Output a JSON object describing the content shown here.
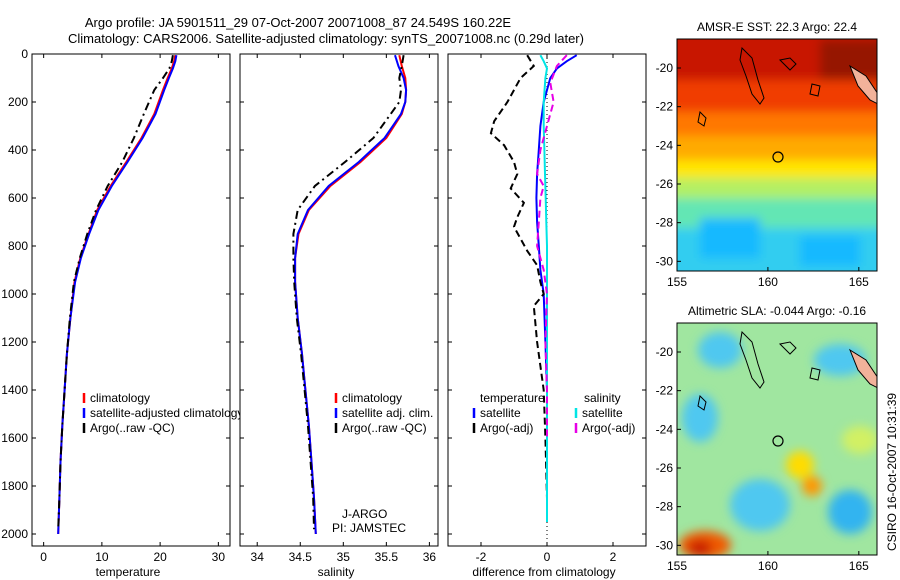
{
  "figure": {
    "title_line1": "Argo profile: JA 5901511_29 07-Oct-2007 20071008_87 24.549S 160.22E",
    "title_line2": "Climatology: CARS2006. Satellite-adjusted climatology: synTS_20071008.nc (0.29d later)",
    "credit": "CSIRO 16-Oct-2007 10:31:39",
    "pi_line1": "J-ARGO",
    "pi_line2": "PI: JAMSTEC"
  },
  "colors": {
    "climatology": "#ff0000",
    "satellite": "#0000ff",
    "argo": "#000000",
    "satellite_salinity": "#00e5e5",
    "argo_salinity": "#e600e6",
    "land": "#f2b29a"
  },
  "chart_data": [
    {
      "type": "line",
      "xlabel": "temperature",
      "ylabel": "",
      "xlim": [
        -2,
        32
      ],
      "ylim": [
        2050,
        0
      ],
      "xticks": [
        0,
        10,
        20,
        30
      ],
      "yticks": [
        0,
        200,
        400,
        600,
        800,
        1000,
        1200,
        1400,
        1600,
        1800,
        2000
      ],
      "legend": [
        "climatology",
        "satellite-adjusted climatology",
        "Argo(..raw -QC)"
      ],
      "series": [
        {
          "name": "climatology",
          "x": [
            22.6,
            22.4,
            22.0,
            21.3,
            20.5,
            19.0,
            16.8,
            14.2,
            11.5,
            9.2,
            7.7,
            6.3,
            5.3,
            4.6,
            4.0,
            3.6,
            3.2,
            2.9,
            2.7,
            2.5
          ],
          "y": [
            5,
            30,
            60,
            100,
            150,
            250,
            350,
            450,
            550,
            650,
            750,
            850,
            950,
            1100,
            1250,
            1400,
            1550,
            1700,
            1850,
            2000
          ]
        },
        {
          "name": "satellite-adjusted climatology",
          "x": [
            22.8,
            22.6,
            22.2,
            21.5,
            20.7,
            19.2,
            17.0,
            14.4,
            11.7,
            9.4,
            7.8,
            6.4,
            5.4,
            4.6,
            4.0,
            3.6,
            3.2,
            2.9,
            2.7,
            2.5
          ],
          "y": [
            5,
            30,
            60,
            100,
            150,
            250,
            350,
            450,
            550,
            650,
            750,
            850,
            950,
            1100,
            1250,
            1400,
            1550,
            1700,
            1850,
            2000
          ]
        },
        {
          "name": "Argo(..raw -QC)",
          "x": [
            22.2,
            22.0,
            21.6,
            20.5,
            19.0,
            17.2,
            15.5,
            13.5,
            11.0,
            9.0,
            7.5,
            6.2,
            5.2,
            4.5,
            4.0,
            3.6,
            3.2,
            2.9,
            2.7,
            2.5
          ],
          "y": [
            5,
            30,
            60,
            100,
            150,
            250,
            350,
            450,
            550,
            650,
            750,
            850,
            950,
            1100,
            1250,
            1400,
            1550,
            1700,
            1850,
            1980
          ]
        }
      ]
    },
    {
      "type": "line",
      "xlabel": "salinity",
      "ylabel": "",
      "xlim": [
        33.8,
        36.1
      ],
      "ylim": [
        2050,
        0
      ],
      "xticks": [
        34,
        34.5,
        35,
        35.5,
        36
      ],
      "legend": [
        "climatology",
        "satellite adj. clim.",
        "Argo(..raw -QC)"
      ],
      "series": [
        {
          "name": "climatology",
          "x": [
            35.65,
            35.68,
            35.72,
            35.73,
            35.72,
            35.68,
            35.5,
            35.2,
            34.85,
            34.6,
            34.48,
            34.44,
            34.44,
            34.47,
            34.52,
            34.56,
            34.6,
            34.63,
            34.66,
            34.68
          ],
          "y": [
            5,
            50,
            100,
            150,
            200,
            250,
            350,
            450,
            550,
            650,
            750,
            850,
            950,
            1100,
            1250,
            1400,
            1550,
            1700,
            1850,
            2000
          ]
        },
        {
          "name": "satellite adj. clim.",
          "x": [
            35.6,
            35.64,
            35.7,
            35.73,
            35.72,
            35.67,
            35.48,
            35.18,
            34.83,
            34.59,
            34.47,
            34.44,
            34.44,
            34.47,
            34.52,
            34.56,
            34.6,
            34.63,
            34.66,
            34.68
          ],
          "y": [
            5,
            50,
            100,
            150,
            200,
            250,
            350,
            450,
            550,
            650,
            750,
            850,
            950,
            1100,
            1250,
            1400,
            1550,
            1700,
            1850,
            2000
          ]
        },
        {
          "name": "Argo(..raw -QC)",
          "x": [
            35.7,
            35.68,
            35.65,
            35.67,
            35.65,
            35.55,
            35.35,
            35.02,
            34.67,
            34.47,
            34.42,
            34.42,
            34.43,
            34.46,
            34.51,
            34.55,
            34.59,
            34.62,
            34.65,
            34.66
          ],
          "y": [
            5,
            50,
            100,
            150,
            200,
            250,
            350,
            450,
            550,
            650,
            750,
            850,
            950,
            1100,
            1250,
            1400,
            1550,
            1700,
            1850,
            1980
          ]
        }
      ]
    },
    {
      "type": "line",
      "xlabel": "difference from climatology",
      "ylabel": "",
      "xlim": [
        -3,
        3
      ],
      "ylim": [
        2050,
        0
      ],
      "xticks": [
        -2,
        0,
        2
      ],
      "legend_titles": [
        "temperature",
        "salinity"
      ],
      "legend": [
        "satellite",
        "Argo(-adj)",
        "satellite",
        "Argo(-adj)"
      ],
      "series": [
        {
          "name": "satellite",
          "group": "temperature",
          "x": [
            0.9,
            0.6,
            0.3,
            0.1,
            -0.1,
            -0.2,
            -0.25,
            -0.3,
            -0.32,
            -0.3,
            -0.25,
            -0.2,
            -0.1,
            -0.05,
            0,
            0,
            0,
            0,
            0,
            0
          ],
          "y": [
            5,
            30,
            60,
            100,
            200,
            300,
            400,
            500,
            600,
            700,
            800,
            900,
            1000,
            1200,
            1400,
            1600,
            1700,
            1800,
            1900,
            1950
          ]
        },
        {
          "name": "Argo(-adj)",
          "group": "temperature",
          "x": [
            -0.6,
            -0.4,
            -0.8,
            -1.2,
            -1.6,
            -1.7,
            -1.3,
            -1.0,
            -0.9,
            -1.1,
            -0.7,
            -0.9,
            -1.0,
            -0.6,
            -0.3,
            -0.2,
            -0.1,
            -0.4,
            -0.3,
            -0.1,
            -0.05,
            0
          ],
          "y": [
            5,
            50,
            100,
            200,
            280,
            330,
            380,
            450,
            500,
            560,
            620,
            680,
            720,
            820,
            880,
            950,
            1000,
            1050,
            1200,
            1400,
            1600,
            1850
          ]
        },
        {
          "name": "satellite",
          "group": "salinity",
          "x": [
            -0.2,
            -0.1,
            0.0,
            -0.05,
            -0.1,
            -0.1,
            -0.08,
            -0.06,
            -0.04,
            -0.02,
            0,
            0,
            0,
            0,
            0,
            0,
            0,
            0,
            0,
            0
          ],
          "y": [
            5,
            30,
            60,
            100,
            200,
            300,
            400,
            500,
            600,
            700,
            800,
            900,
            1000,
            1200,
            1400,
            1600,
            1700,
            1800,
            1900,
            1950
          ]
        },
        {
          "name": "Argo(-adj)",
          "group": "salinity",
          "x": [
            0.6,
            0.3,
            0.1,
            0.2,
            0.0,
            -0.2,
            -0.3,
            -0.1,
            -0.2,
            -0.25,
            -0.3,
            -0.1,
            0.0,
            -0.05,
            0.0,
            0.0
          ],
          "y": [
            5,
            50,
            120,
            200,
            300,
            400,
            500,
            550,
            600,
            700,
            800,
            900,
            1000,
            1200,
            1400,
            1600
          ]
        }
      ]
    },
    {
      "type": "heatmap",
      "title": "AMSR-E SST: 22.3  Argo: 22.4",
      "xlim": [
        155,
        166
      ],
      "ylim": [
        -30.5,
        -18.5
      ],
      "xticks": [
        155,
        160,
        165
      ],
      "yticks": [
        -20,
        -22,
        -24,
        -26,
        -28,
        -30
      ],
      "marker": {
        "lon": 160.22,
        "lat": -24.549
      }
    },
    {
      "type": "heatmap",
      "title": "Altimetric SLA: -0.044  Argo: -0.16",
      "xlim": [
        155,
        166
      ],
      "ylim": [
        -30.5,
        -18.5
      ],
      "xticks": [
        155,
        160,
        165
      ],
      "yticks": [
        -20,
        -22,
        -24,
        -26,
        -28,
        -30
      ],
      "marker": {
        "lon": 160.22,
        "lat": -24.549
      }
    }
  ]
}
